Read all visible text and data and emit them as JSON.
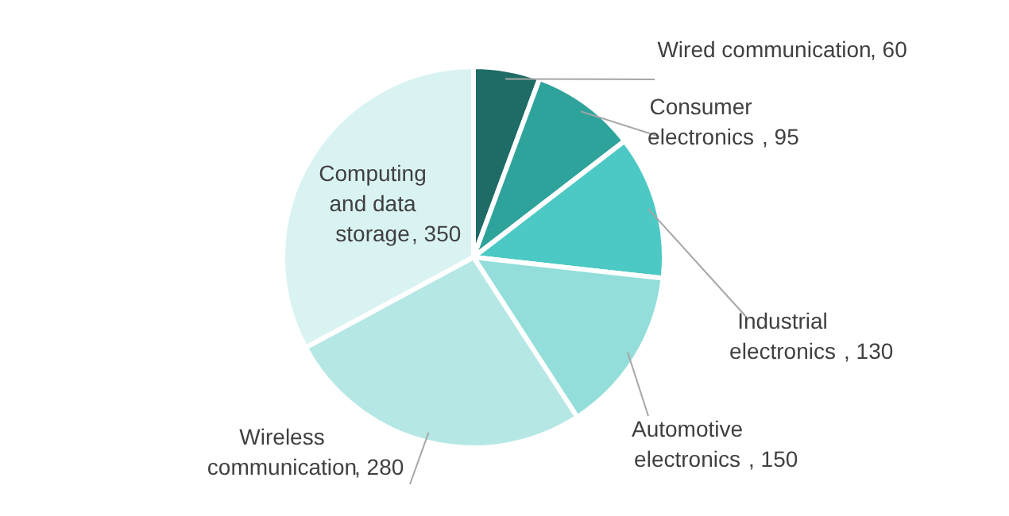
{
  "chart_data": {
    "type": "pie",
    "categories": [
      "Wired communication",
      "Consumer electronics",
      "Industrial electronics",
      "Automotive electronics",
      "Wireless communication",
      "Computing and data storage"
    ],
    "values": [
      60,
      95,
      130,
      150,
      280,
      350
    ],
    "colors": [
      "#1f6b66",
      "#2ea39b",
      "#4cc9c4",
      "#93deda",
      "#b5e8e5",
      "#d9f3f2"
    ],
    "value_labels": [
      ", 60",
      ", 95",
      ", 130",
      ", 150",
      ", 280",
      ", 350"
    ]
  }
}
